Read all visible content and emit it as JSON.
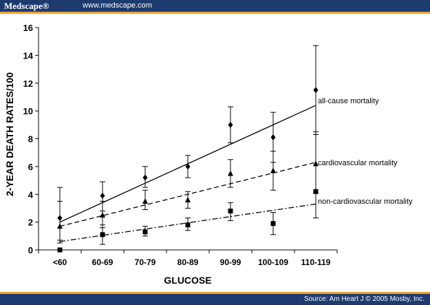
{
  "header": {
    "brand": "Medscape®",
    "site_url": "www.medscape.com"
  },
  "footer": {
    "source": "Source: Am Heart J © 2005 Mosby, Inc."
  },
  "colors": {
    "bar": "#1d3b6e",
    "accent": "#f0a030",
    "ink": "#000000"
  },
  "chart_data": {
    "type": "scatter",
    "xlabel": "GLUCOSE",
    "ylabel": "2-YEAR DEATH RATES/100",
    "categories": [
      "<60",
      "60-69",
      "70-79",
      "80-89",
      "90-99",
      "100-109",
      "110-119"
    ],
    "ylim": [
      0,
      16
    ],
    "yticks": [
      "0",
      "2",
      "4",
      "6",
      "8",
      "10",
      "12",
      "14",
      "16"
    ],
    "grid": false,
    "series": [
      {
        "name": "all-cause mortality",
        "marker": "diamond",
        "line_style": "solid",
        "values": [
          2.3,
          3.9,
          5.2,
          6.0,
          9.0,
          8.1,
          11.5
        ],
        "err_low": [
          0.7,
          2.8,
          4.5,
          5.2,
          7.7,
          6.3,
          8.3
        ],
        "err_high": [
          4.5,
          4.9,
          6.0,
          6.8,
          10.3,
          9.9,
          14.7
        ],
        "trend": [
          2.0,
          10.4
        ]
      },
      {
        "name": "cardiovascular mortality",
        "marker": "triangle",
        "line_style": "dashed",
        "values": [
          1.7,
          2.5,
          3.5,
          3.6,
          5.5,
          5.7,
          6.2
        ],
        "err_low": [
          0.5,
          1.6,
          2.9,
          3.0,
          4.5,
          4.3,
          4.1
        ],
        "err_high": [
          3.5,
          3.5,
          4.3,
          4.2,
          6.5,
          7.1,
          8.5
        ],
        "trend": [
          1.7,
          6.3
        ]
      },
      {
        "name": "non-cardiovascular mortality",
        "marker": "square",
        "line_style": "dashdot",
        "values": [
          0.0,
          1.1,
          1.3,
          1.8,
          2.8,
          1.9,
          4.2
        ],
        "err_low": [
          0.0,
          0.4,
          1.0,
          1.4,
          2.1,
          1.1,
          2.3
        ],
        "err_high": [
          0.0,
          1.8,
          1.7,
          2.3,
          3.4,
          2.7,
          8.3
        ],
        "trend": [
          0.6,
          3.3
        ]
      }
    ]
  }
}
